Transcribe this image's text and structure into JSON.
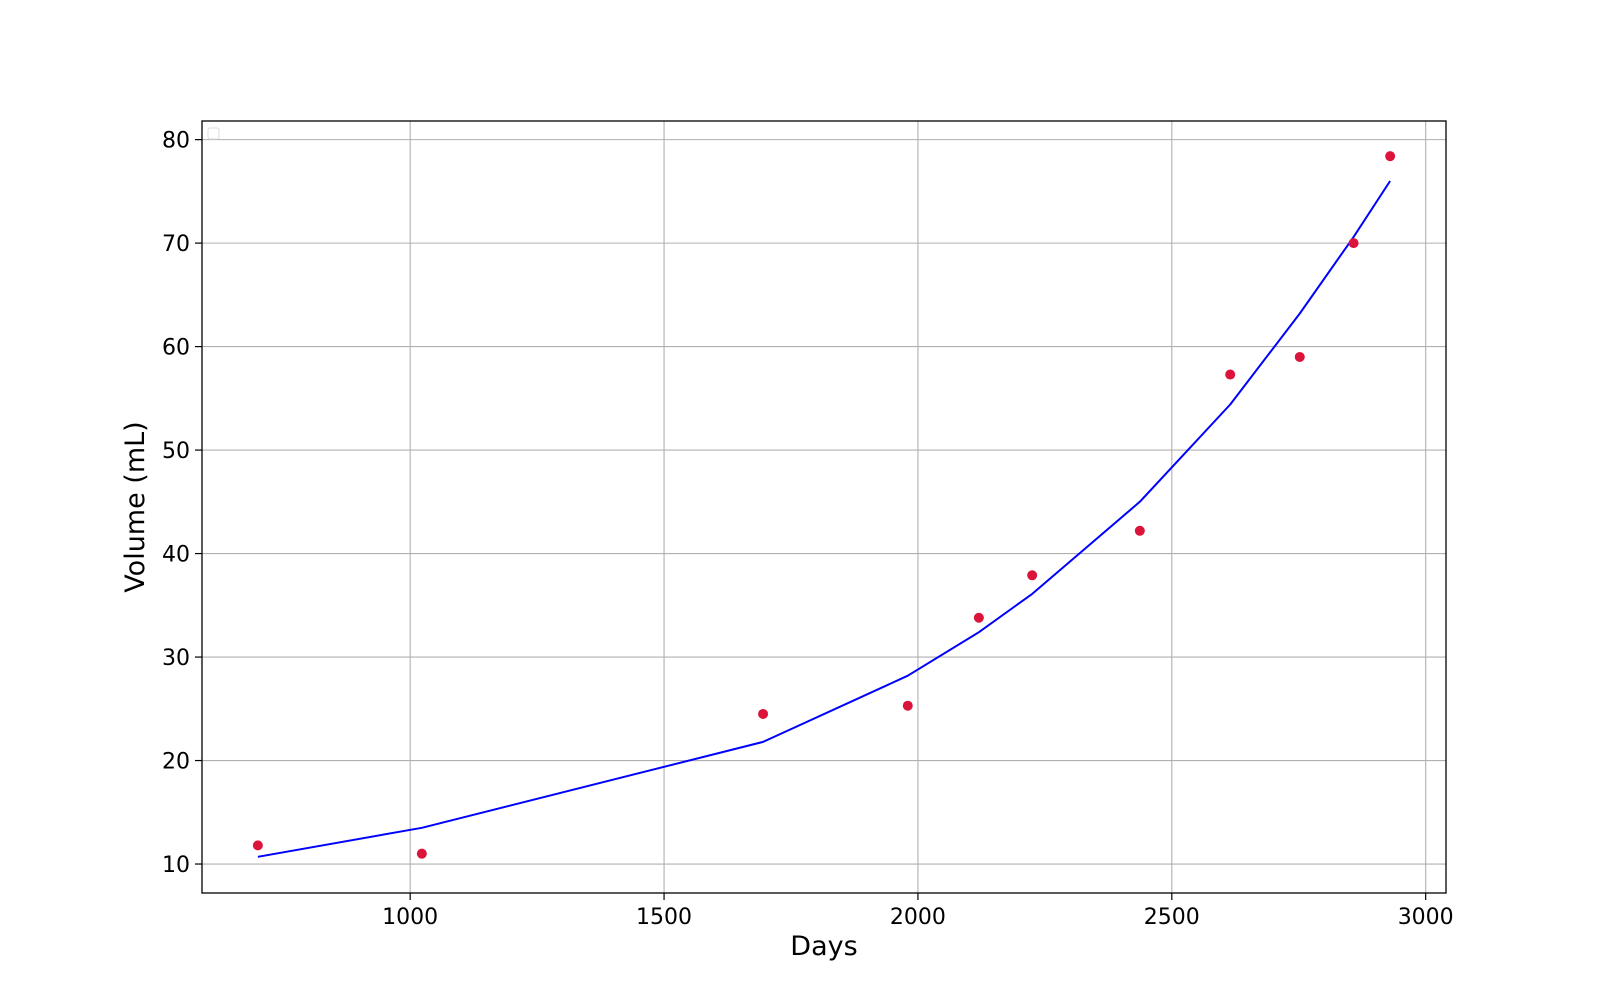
{
  "chart_data": {
    "type": "scatter",
    "xlabel": "Days",
    "ylabel": "Volume (mL)",
    "xlim": [
      590,
      3040
    ],
    "ylim": [
      7.2,
      81.8
    ],
    "xticks": [
      1000,
      1500,
      2000,
      2500,
      3000
    ],
    "yticks": [
      10,
      20,
      30,
      40,
      50,
      60,
      70,
      80
    ],
    "grid": true,
    "legend": "top-left",
    "colors": {
      "points": "#dc143c",
      "line": "#0000ff",
      "grid": "#b0b0b0",
      "axes": "#000000"
    },
    "series": [
      {
        "kind": "points",
        "x": [
          700,
          1023,
          1695,
          1980,
          2120,
          2225,
          2437,
          2615,
          2752,
          2858,
          2930
        ],
        "y": [
          11.8,
          11.0,
          24.5,
          25.3,
          33.8,
          37.9,
          42.2,
          57.3,
          59.0,
          70.0,
          78.4
        ]
      },
      {
        "kind": "line",
        "x": [
          700,
          1023,
          1695,
          1980,
          2120,
          2225,
          2437,
          2615,
          2752,
          2858,
          2930
        ],
        "y": [
          10.7,
          13.5,
          21.8,
          28.2,
          32.4,
          36.1,
          45.0,
          54.4,
          63.2,
          70.6,
          76.0
        ]
      }
    ]
  }
}
